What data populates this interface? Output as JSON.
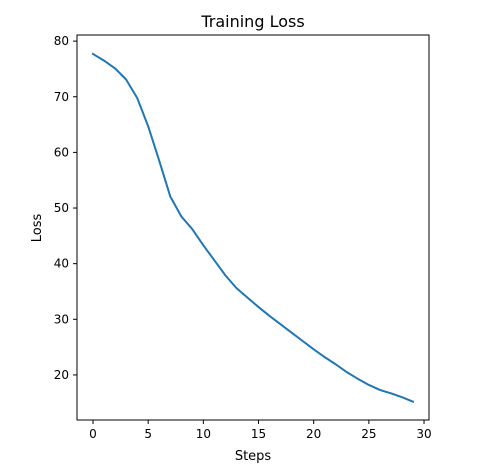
{
  "chart_data": {
    "type": "line",
    "title": "Training Loss",
    "xlabel": "Steps",
    "ylabel": "Loss",
    "xlim": [
      -1.45,
      30.45
    ],
    "ylim": [
      11.9,
      81.1
    ],
    "xticks": [
      0,
      5,
      10,
      15,
      20,
      25,
      30
    ],
    "yticks": [
      20,
      30,
      40,
      50,
      60,
      70,
      80
    ],
    "grid": false,
    "series": [
      {
        "color": "#1f77b4",
        "x": [
          0,
          1,
          2,
          3,
          4,
          5,
          6,
          7,
          8,
          9,
          10,
          11,
          12,
          13,
          14,
          15,
          16,
          17,
          18,
          19,
          20,
          21,
          22,
          23,
          24,
          25,
          26,
          27,
          28,
          29
        ],
        "y": [
          77.7,
          76.5,
          75.1,
          73.1,
          69.8,
          64.7,
          58.5,
          52.1,
          48.5,
          46.2,
          43.3,
          40.6,
          37.9,
          35.6,
          33.9,
          32.2,
          30.6,
          29.1,
          27.6,
          26.1,
          24.6,
          23.2,
          21.9,
          20.5,
          19.3,
          18.2,
          17.3,
          16.7,
          16.0,
          15.2
        ]
      }
    ]
  }
}
